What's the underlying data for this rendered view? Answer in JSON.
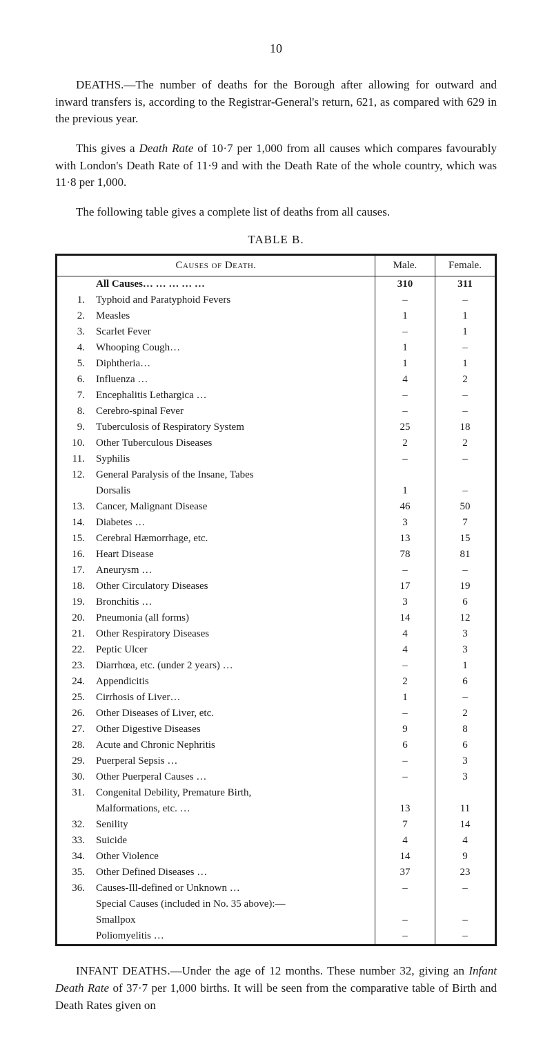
{
  "page_number": "10",
  "para1": "DEATHS.—The number of deaths for the Borough after allowing for outward and inward transfers is, according to the Registrar-General's return, 621, as compared with 629 in the previous year.",
  "para2_a": "This gives a ",
  "para2_b": "Death Rate",
  "para2_c": " of 10·7 per 1,000 from all causes which compares favourably with London's Death Rate of 11·9 and with the Death Rate of the whole country, which was 11·8 per 1,000.",
  "para3": "The following table gives a complete list of deaths from all causes.",
  "table_title": "TABLE B.",
  "header_causes": "Causes of Death.",
  "header_male": "Male.",
  "header_female": "Female.",
  "all_causes_label": "All Causes…      …      …      …      …",
  "all_causes_male": "310",
  "all_causes_female": "311",
  "rows": [
    {
      "n": "1.",
      "c": "Typhoid and Paratyphoid Fevers",
      "m": "–",
      "f": "–"
    },
    {
      "n": "2.",
      "c": "Measles",
      "m": "1",
      "f": "1"
    },
    {
      "n": "3.",
      "c": "Scarlet Fever",
      "m": "–",
      "f": "1"
    },
    {
      "n": "4.",
      "c": "Whooping Cough…",
      "m": "1",
      "f": "–"
    },
    {
      "n": "5.",
      "c": "Diphtheria…",
      "m": "1",
      "f": "1"
    },
    {
      "n": "6.",
      "c": "Influenza …",
      "m": "4",
      "f": "2"
    },
    {
      "n": "7.",
      "c": "Encephalitis Lethargica …",
      "m": "–",
      "f": "–"
    },
    {
      "n": "8.",
      "c": "Cerebro-spinal Fever",
      "m": "–",
      "f": "–"
    },
    {
      "n": "9.",
      "c": "Tuberculosis of Respiratory System",
      "m": "25",
      "f": "18"
    },
    {
      "n": "10.",
      "c": "Other Tuberculous Diseases",
      "m": "2",
      "f": "2"
    },
    {
      "n": "11.",
      "c": "Syphilis",
      "m": "–",
      "f": "–"
    },
    {
      "n": "12.",
      "c": "General Paralysis of the Insane, Tabes",
      "m": "",
      "f": ""
    },
    {
      "n": "",
      "c": "Dorsalis",
      "m": "1",
      "f": "–",
      "sub": true
    },
    {
      "n": "13.",
      "c": "Cancer, Malignant Disease",
      "m": "46",
      "f": "50"
    },
    {
      "n": "14.",
      "c": "Diabetes …",
      "m": "3",
      "f": "7"
    },
    {
      "n": "15.",
      "c": "Cerebral Hæmorrhage, etc.",
      "m": "13",
      "f": "15"
    },
    {
      "n": "16.",
      "c": "Heart Disease",
      "m": "78",
      "f": "81"
    },
    {
      "n": "17.",
      "c": "Aneurysm …",
      "m": "–",
      "f": "–"
    },
    {
      "n": "18.",
      "c": "Other Circulatory Diseases",
      "m": "17",
      "f": "19"
    },
    {
      "n": "19.",
      "c": "Bronchitis …",
      "m": "3",
      "f": "6"
    },
    {
      "n": "20.",
      "c": "Pneumonia (all forms)",
      "m": "14",
      "f": "12"
    },
    {
      "n": "21.",
      "c": "Other Respiratory Diseases",
      "m": "4",
      "f": "3"
    },
    {
      "n": "22.",
      "c": "Peptic Ulcer",
      "m": "4",
      "f": "3"
    },
    {
      "n": "23.",
      "c": "Diarrhœa, etc. (under 2 years) …",
      "m": "–",
      "f": "1"
    },
    {
      "n": "24.",
      "c": "Appendicitis",
      "m": "2",
      "f": "6"
    },
    {
      "n": "25.",
      "c": "Cirrhosis of Liver…",
      "m": "1",
      "f": "–"
    },
    {
      "n": "26.",
      "c": "Other Diseases of Liver, etc.",
      "m": "–",
      "f": "2"
    },
    {
      "n": "27.",
      "c": "Other Digestive Diseases",
      "m": "9",
      "f": "8"
    },
    {
      "n": "28.",
      "c": "Acute and Chronic Nephritis",
      "m": "6",
      "f": "6"
    },
    {
      "n": "29.",
      "c": "Puerperal Sepsis …",
      "m": "–",
      "f": "3"
    },
    {
      "n": "30.",
      "c": "Other Puerperal Causes …",
      "m": "–",
      "f": "3"
    },
    {
      "n": "31.",
      "c": "Congenital Debility, Premature Birth,",
      "m": "",
      "f": ""
    },
    {
      "n": "",
      "c": "Malformations, etc. …",
      "m": "13",
      "f": "11",
      "sub": true
    },
    {
      "n": "32.",
      "c": "Senility",
      "m": "7",
      "f": "14"
    },
    {
      "n": "33.",
      "c": "Suicide",
      "m": "4",
      "f": "4"
    },
    {
      "n": "34.",
      "c": "Other Violence",
      "m": "14",
      "f": "9"
    },
    {
      "n": "35.",
      "c": "Other Defined Diseases …",
      "m": "37",
      "f": "23"
    },
    {
      "n": "36.",
      "c": "Causes-Ill-defined or Unknown …",
      "m": "–",
      "f": "–"
    }
  ],
  "special_label": "Special Causes (included in No. 35 above):—",
  "special_rows": [
    {
      "c": "Smallpox",
      "m": "–",
      "f": "–"
    },
    {
      "c": "Poliomyelitis …",
      "m": "–",
      "f": "–"
    }
  ],
  "para4_a": "INFANT DEATHS.—Under the age of 12 months. These number 32, giving an ",
  "para4_b": "Infant Death Rate",
  "para4_c": " of 37·7 per 1,000 births. It will be seen from the comparative table of Birth and Death Rates given on"
}
